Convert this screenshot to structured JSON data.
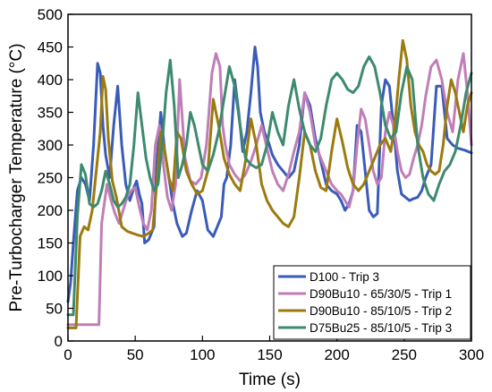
{
  "chart_data": {
    "type": "line",
    "title": "",
    "xlabel": "Time (s)",
    "ylabel": "Pre-Turbocharger Temperature (°C)",
    "xlim": [
      0,
      300
    ],
    "ylim": [
      0,
      500
    ],
    "xticks": [
      0,
      50,
      100,
      150,
      200,
      250,
      300
    ],
    "yticks": [
      0,
      50,
      100,
      150,
      200,
      250,
      300,
      350,
      400,
      450,
      500
    ],
    "xtick_labels": [
      "0",
      "50",
      "100",
      "150",
      "200",
      "250",
      "300"
    ],
    "ytick_labels": [
      "0",
      "50",
      "100",
      "150",
      "200",
      "250",
      "300",
      "350",
      "400",
      "450",
      "500"
    ],
    "grid": false,
    "legend_position": "bottom-right",
    "series": [
      {
        "name": "D100 - Trip 3",
        "color": "#3A5CB8",
        "x": [
          0,
          2,
          4,
          7,
          10,
          13,
          16,
          19,
          22,
          24,
          26,
          28,
          31,
          34,
          37,
          40,
          43,
          46,
          49,
          51,
          53,
          55,
          57,
          60,
          64,
          66,
          69,
          72,
          75,
          78,
          81,
          85,
          88,
          92,
          96,
          100,
          104,
          108,
          111,
          114,
          116,
          118,
          121,
          124,
          127,
          130,
          133,
          136,
          139,
          141,
          143,
          146,
          149,
          152,
          156,
          160,
          164,
          168,
          172,
          176,
          180,
          184,
          188,
          192,
          196,
          200,
          203,
          206,
          209,
          212,
          215,
          218,
          221,
          224,
          227,
          230,
          233,
          236,
          239,
          242,
          245,
          248,
          251,
          254,
          257,
          260,
          263,
          266,
          270,
          274,
          278,
          282,
          286,
          290,
          295,
          300
        ],
        "y": [
          60,
          90,
          150,
          230,
          250,
          240,
          215,
          300,
          425,
          410,
          330,
          285,
          250,
          330,
          390,
          300,
          240,
          215,
          235,
          245,
          225,
          210,
          150,
          155,
          175,
          270,
          350,
          290,
          250,
          210,
          180,
          160,
          165,
          200,
          230,
          215,
          170,
          160,
          175,
          190,
          240,
          250,
          300,
          400,
          350,
          290,
          320,
          380,
          450,
          420,
          350,
          320,
          305,
          285,
          270,
          260,
          250,
          260,
          300,
          380,
          360,
          310,
          275,
          240,
          230,
          225,
          215,
          200,
          210,
          230,
          330,
          320,
          260,
          200,
          190,
          195,
          360,
          400,
          390,
          330,
          260,
          225,
          220,
          215,
          218,
          220,
          230,
          250,
          270,
          390,
          390,
          310,
          300,
          295,
          292,
          288
        ]
      },
      {
        "name": "D90Bu10 - 65/30/5 - Trip 1",
        "color": "#C07EB8",
        "x": [
          0,
          3,
          6,
          9,
          12,
          15,
          18,
          21,
          23,
          25,
          27,
          29,
          32,
          35,
          38,
          41,
          44,
          47,
          50,
          53,
          56,
          59,
          62,
          65,
          68,
          71,
          74,
          77,
          80,
          83,
          87,
          91,
          95,
          99,
          103,
          107,
          110,
          113,
          115,
          117,
          120,
          124,
          128,
          132,
          136,
          140,
          144,
          148,
          152,
          156,
          160,
          164,
          168,
          172,
          176,
          180,
          184,
          188,
          192,
          196,
          200,
          203,
          206,
          209,
          212,
          215,
          218,
          221,
          224,
          227,
          230,
          233,
          236,
          239,
          242,
          245,
          248,
          251,
          254,
          257,
          260,
          263,
          266,
          270,
          274,
          278,
          282,
          286,
          290,
          294,
          297,
          300
        ],
        "y": [
          25,
          25,
          25,
          25,
          25,
          25,
          25,
          25,
          25,
          180,
          210,
          240,
          215,
          195,
          180,
          200,
          220,
          230,
          235,
          205,
          180,
          170,
          200,
          300,
          330,
          270,
          220,
          200,
          240,
          400,
          280,
          245,
          240,
          250,
          300,
          410,
          440,
          420,
          330,
          300,
          270,
          255,
          245,
          255,
          275,
          300,
          330,
          295,
          260,
          240,
          230,
          255,
          290,
          320,
          380,
          350,
          300,
          280,
          260,
          240,
          230,
          225,
          215,
          205,
          230,
          300,
          355,
          340,
          300,
          260,
          240,
          250,
          320,
          350,
          330,
          290,
          260,
          250,
          255,
          280,
          300,
          330,
          375,
          420,
          430,
          400,
          350,
          320,
          400,
          440,
          380,
          300
        ]
      },
      {
        "name": "D90Bu10 - 85/10/5 - Trip 2",
        "color": "#9B7A0E",
        "x": [
          0,
          3,
          6,
          9,
          12,
          15,
          18,
          21,
          24,
          26,
          28,
          30,
          33,
          36,
          40,
          44,
          48,
          52,
          56,
          60,
          63,
          66,
          69,
          72,
          75,
          78,
          81,
          84,
          88,
          92,
          96,
          100,
          104,
          108,
          112,
          116,
          120,
          124,
          128,
          132,
          136,
          140,
          144,
          148,
          152,
          156,
          160,
          164,
          168,
          172,
          176,
          180,
          184,
          188,
          192,
          196,
          200,
          204,
          208,
          212,
          216,
          220,
          224,
          228,
          232,
          236,
          240,
          243,
          246,
          249,
          252,
          255,
          258,
          261,
          264,
          267,
          270,
          273,
          276,
          279,
          282,
          285,
          288,
          291,
          294,
          297,
          300
        ],
        "y": [
          20,
          20,
          20,
          160,
          175,
          170,
          200,
          260,
          320,
          405,
          385,
          310,
          245,
          220,
          175,
          168,
          165,
          162,
          160,
          165,
          170,
          240,
          320,
          290,
          250,
          230,
          320,
          310,
          260,
          240,
          225,
          230,
          260,
          370,
          330,
          280,
          255,
          240,
          230,
          275,
          340,
          300,
          240,
          215,
          200,
          190,
          180,
          175,
          190,
          250,
          320,
          300,
          260,
          235,
          230,
          290,
          340,
          305,
          265,
          240,
          230,
          240,
          260,
          280,
          300,
          310,
          290,
          330,
          400,
          460,
          430,
          360,
          320,
          300,
          290,
          270,
          260,
          255,
          260,
          300,
          360,
          400,
          380,
          350,
          320,
          360,
          380
        ]
      },
      {
        "name": "D75Bu25 - 85/10/5 - Trip 3",
        "color": "#3D8A6E",
        "x": [
          0,
          2,
          4,
          7,
          10,
          13,
          16,
          19,
          22,
          25,
          28,
          31,
          34,
          37,
          40,
          43,
          46,
          49,
          52,
          55,
          58,
          61,
          64,
          67,
          70,
          73,
          76,
          79,
          82,
          85,
          88,
          91,
          94,
          97,
          100,
          104,
          108,
          112,
          116,
          120,
          124,
          128,
          132,
          136,
          140,
          144,
          148,
          152,
          156,
          160,
          164,
          168,
          172,
          176,
          180,
          184,
          188,
          192,
          196,
          200,
          204,
          208,
          212,
          216,
          220,
          224,
          228,
          232,
          236,
          240,
          244,
          248,
          252,
          256,
          260,
          264,
          268,
          272,
          276,
          280,
          284,
          288,
          292,
          296,
          300
        ],
        "y": [
          40,
          40,
          40,
          190,
          270,
          255,
          210,
          205,
          210,
          230,
          260,
          240,
          215,
          205,
          210,
          220,
          240,
          300,
          380,
          330,
          280,
          250,
          230,
          240,
          300,
          380,
          430,
          360,
          250,
          270,
          300,
          350,
          330,
          300,
          270,
          260,
          285,
          320,
          370,
          420,
          390,
          330,
          280,
          270,
          265,
          270,
          300,
          350,
          320,
          300,
          360,
          400,
          355,
          320,
          300,
          290,
          310,
          360,
          400,
          410,
          400,
          385,
          380,
          390,
          420,
          435,
          420,
          380,
          330,
          310,
          320,
          380,
          420,
          400,
          300,
          250,
          225,
          215,
          240,
          260,
          270,
          290,
          330,
          380,
          410
        ]
      }
    ]
  }
}
